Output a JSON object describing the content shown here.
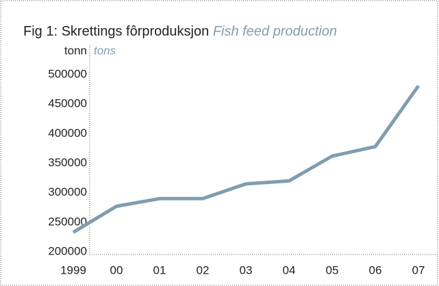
{
  "chart_data": {
    "type": "line",
    "title": "Fig 1: Skrettings fôrproduksjon",
    "title_en": "Fish feed production",
    "y_label": "tonn",
    "y_label_en": "tons",
    "categories": [
      "1999",
      "00",
      "01",
      "02",
      "03",
      "04",
      "05",
      "06",
      "07"
    ],
    "series": [
      {
        "name": "Fish feed production",
        "color": "#7f9db0",
        "values": [
          233000,
          277000,
          290000,
          290000,
          315000,
          320000,
          362000,
          378000,
          481000
        ]
      }
    ],
    "ylim": [
      200000,
      500000
    ],
    "yticks": [
      200000,
      250000,
      300000,
      350000,
      400000,
      450000,
      500000
    ],
    "grid": false
  }
}
